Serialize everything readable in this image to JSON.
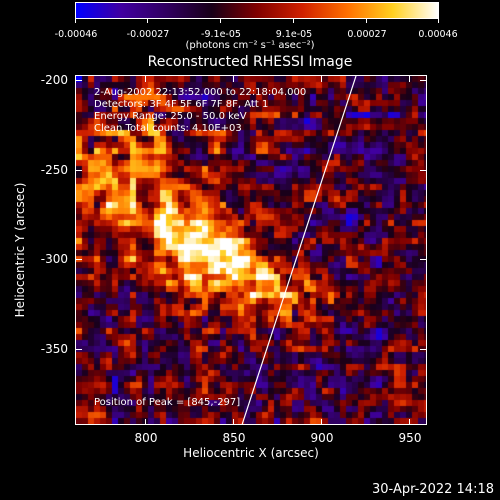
{
  "colorbar": {
    "tick_labels": [
      "-0.00046",
      "-0.00027",
      "-9.1e-05",
      "9.1e-05",
      "0.00027",
      "0.00046"
    ],
    "units": "(photons cm⁻² s⁻¹ asec⁻²)",
    "colors": [
      "#0000ff",
      "#4000a0",
      "#300060",
      "#180018",
      "#800000",
      "#d02000",
      "#ff7000",
      "#ffd020",
      "#ffffff"
    ]
  },
  "plot": {
    "title": "Reconstructed RHESSI Image",
    "info_lines": [
      " 2-Aug-2002 22:13:52.000 to 22:18:04.000",
      "Detectors: 3F 4F 5F 6F 7F 8F, Att 1",
      "Energy Range: 25.0 - 50.0 keV",
      "Clean     Total counts: 4.10E+03"
    ],
    "peak_label": "Position of Peak = [845,-297]",
    "x_label": "Heliocentric X (arcsec)",
    "y_label": "Heliocentric Y (arcsec)",
    "x_ticks": [
      "800",
      "850",
      "900",
      "950"
    ],
    "y_ticks": [
      "-200",
      "-250",
      "-300",
      "-350"
    ]
  },
  "footer": {
    "timestamp": "30-Apr-2022 14:18"
  },
  "chart_data": {
    "type": "heatmap",
    "title": "Reconstructed RHESSI Image",
    "xlabel": "Heliocentric X (arcsec)",
    "ylabel": "Heliocentric Y (arcsec)",
    "xlim": [
      765,
      965
    ],
    "ylim": [
      -390,
      -195
    ],
    "colorbar_range": [
      -0.00046,
      0.00046
    ],
    "peak": [
      845,
      -297
    ],
    "limb_line": {
      "x": [
        860,
        925
      ],
      "y": [
        -390,
        -195
      ],
      "color": "#ffffff"
    }
  }
}
